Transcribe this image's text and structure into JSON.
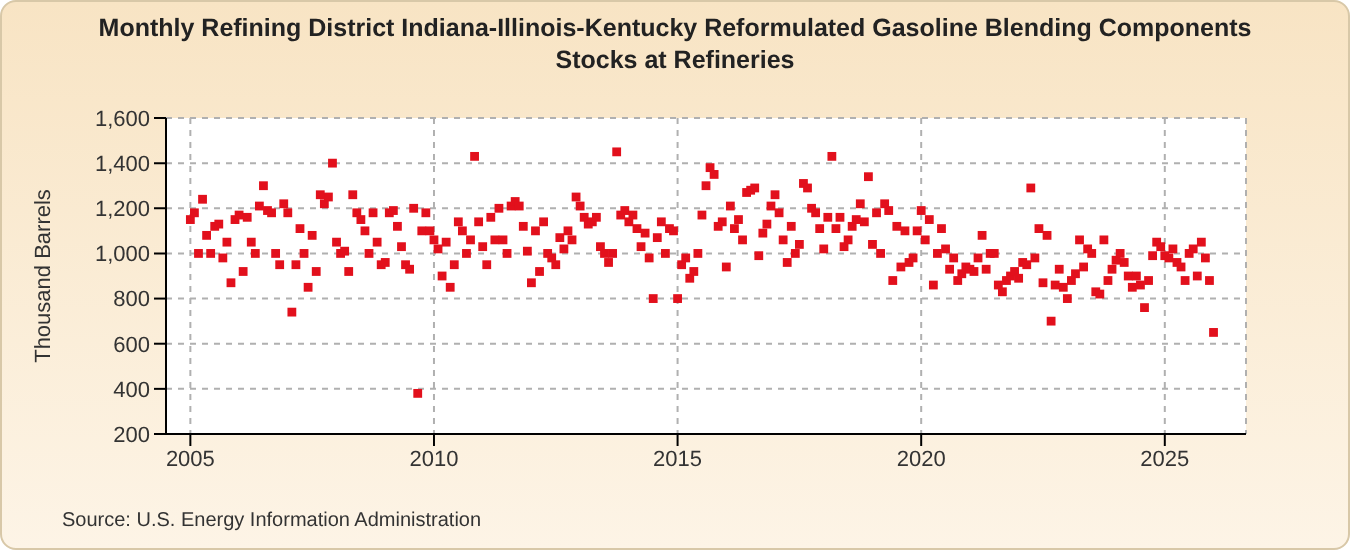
{
  "chart_data": {
    "type": "scatter",
    "title": "Monthly Refining District Indiana-Illinois-Kentucky Reformulated Gasoline Blending Components Stocks at Refineries",
    "ylabel": "Thousand Barrels",
    "annotations": [
      "Source: U.S. Energy Information Administration"
    ],
    "series": [
      {
        "color": "#e2101c",
        "marker": "square",
        "x": [
          "2005-01",
          "2005-02",
          "2005-03",
          "2005-04",
          "2005-05",
          "2005-06",
          "2005-07",
          "2005-08",
          "2005-09",
          "2005-10",
          "2005-11",
          "2005-12",
          "2006-01",
          "2006-02",
          "2006-03",
          "2006-04",
          "2006-05",
          "2006-06",
          "2006-07",
          "2006-08",
          "2006-09",
          "2006-10",
          "2006-11",
          "2006-12",
          "2007-01",
          "2007-02",
          "2007-03",
          "2007-04",
          "2007-05",
          "2007-06",
          "2007-07",
          "2007-08",
          "2007-09",
          "2007-10",
          "2007-11",
          "2007-12",
          "2008-01",
          "2008-02",
          "2008-03",
          "2008-04",
          "2008-05",
          "2008-06",
          "2008-07",
          "2008-08",
          "2008-09",
          "2008-10",
          "2008-11",
          "2008-12",
          "2009-01",
          "2009-02",
          "2009-03",
          "2009-04",
          "2009-05",
          "2009-06",
          "2009-07",
          "2009-08",
          "2009-09",
          "2009-10",
          "2009-11",
          "2009-12",
          "2010-01",
          "2010-02",
          "2010-03",
          "2010-04",
          "2010-05",
          "2010-06",
          "2010-07",
          "2010-08",
          "2010-09",
          "2010-10",
          "2010-11",
          "2010-12",
          "2011-01",
          "2011-02",
          "2011-03",
          "2011-04",
          "2011-05",
          "2011-06",
          "2011-07",
          "2011-08",
          "2011-09",
          "2011-10",
          "2011-11",
          "2011-12",
          "2012-01",
          "2012-02",
          "2012-03",
          "2012-04",
          "2012-05",
          "2012-06",
          "2012-07",
          "2012-08",
          "2012-09",
          "2012-10",
          "2012-11",
          "2012-12",
          "2013-01",
          "2013-02",
          "2013-03",
          "2013-04",
          "2013-05",
          "2013-06",
          "2013-07",
          "2013-08",
          "2013-09",
          "2013-10",
          "2013-11",
          "2013-12",
          "2014-01",
          "2014-02",
          "2014-03",
          "2014-04",
          "2014-05",
          "2014-06",
          "2014-07",
          "2014-08",
          "2014-09",
          "2014-10",
          "2014-11",
          "2014-12",
          "2015-01",
          "2015-02",
          "2015-03",
          "2015-04",
          "2015-05",
          "2015-06",
          "2015-07",
          "2015-08",
          "2015-09",
          "2015-10",
          "2015-11",
          "2015-12",
          "2016-01",
          "2016-02",
          "2016-03",
          "2016-04",
          "2016-05",
          "2016-06",
          "2016-07",
          "2016-08",
          "2016-09",
          "2016-10",
          "2016-11",
          "2016-12",
          "2017-01",
          "2017-02",
          "2017-03",
          "2017-04",
          "2017-05",
          "2017-06",
          "2017-07",
          "2017-08",
          "2017-09",
          "2017-10",
          "2017-11",
          "2017-12",
          "2018-01",
          "2018-02",
          "2018-03",
          "2018-04",
          "2018-05",
          "2018-06",
          "2018-07",
          "2018-08",
          "2018-09",
          "2018-10",
          "2018-11",
          "2018-12",
          "2019-01",
          "2019-02",
          "2019-03",
          "2019-04",
          "2019-05",
          "2019-06",
          "2019-07",
          "2019-08",
          "2019-09",
          "2019-10",
          "2019-11",
          "2019-12",
          "2020-01",
          "2020-02",
          "2020-03",
          "2020-04",
          "2020-05",
          "2020-06",
          "2020-07",
          "2020-08",
          "2020-09",
          "2020-10",
          "2020-11",
          "2020-12",
          "2021-01",
          "2021-02",
          "2021-03",
          "2021-04",
          "2021-05",
          "2021-06",
          "2021-07",
          "2021-08",
          "2021-09",
          "2021-10",
          "2021-11",
          "2021-12",
          "2022-01",
          "2022-02",
          "2022-03",
          "2022-04",
          "2022-05",
          "2022-06",
          "2022-07",
          "2022-08",
          "2022-09",
          "2022-10",
          "2022-11",
          "2022-12",
          "2023-01",
          "2023-02",
          "2023-03",
          "2023-04",
          "2023-05",
          "2023-06",
          "2023-07",
          "2023-08",
          "2023-09",
          "2023-10",
          "2023-11",
          "2023-12",
          "2024-01",
          "2024-02",
          "2024-03",
          "2024-04",
          "2024-05",
          "2024-06",
          "2024-07",
          "2024-08",
          "2024-09",
          "2024-10",
          "2024-11",
          "2024-12",
          "2025-01",
          "2025-02",
          "2025-03",
          "2025-04",
          "2025-05",
          "2025-06",
          "2025-07",
          "2025-08",
          "2025-09",
          "2025-10",
          "2025-11",
          "2025-12",
          "2026-01"
        ],
        "values": [
          1150,
          1180,
          1000,
          1240,
          1080,
          1000,
          1120,
          1130,
          980,
          1050,
          870,
          1150,
          1170,
          920,
          1160,
          1050,
          1000,
          1210,
          1300,
          1190,
          1180,
          1000,
          950,
          1220,
          1180,
          740,
          950,
          1110,
          1000,
          850,
          1080,
          920,
          1260,
          1220,
          1250,
          1400,
          1050,
          1000,
          1010,
          920,
          1260,
          1180,
          1150,
          1100,
          1000,
          1180,
          1050,
          950,
          960,
          1180,
          1190,
          1120,
          1030,
          950,
          930,
          1200,
          380,
          1100,
          1180,
          1100,
          1060,
          1020,
          900,
          1050,
          850,
          950,
          1140,
          1100,
          1000,
          1060,
          1430,
          1140,
          1030,
          950,
          1160,
          1060,
          1200,
          1060,
          1000,
          1210,
          1230,
          1210,
          1120,
          1010,
          870,
          1100,
          920,
          1140,
          1000,
          980,
          950,
          1070,
          1020,
          1100,
          1060,
          1250,
          1210,
          1160,
          1130,
          1140,
          1160,
          1030,
          1000,
          960,
          1000,
          1450,
          1170,
          1190,
          1140,
          1170,
          1110,
          1030,
          1090,
          980,
          800,
          1070,
          1140,
          1000,
          1110,
          1100,
          800,
          950,
          980,
          890,
          920,
          1000,
          1170,
          1300,
          1380,
          1350,
          1120,
          1140,
          940,
          1210,
          1110,
          1150,
          1060,
          1270,
          1280,
          1290,
          990,
          1090,
          1130,
          1210,
          1260,
          1180,
          1060,
          960,
          1120,
          1000,
          1040,
          1310,
          1290,
          1200,
          1180,
          1110,
          1020,
          1160,
          1430,
          1110,
          1160,
          1030,
          1060,
          1120,
          1150,
          1220,
          1140,
          1340,
          1040,
          1180,
          1000,
          1220,
          1190,
          880,
          1120,
          940,
          1100,
          960,
          980,
          1100,
          1190,
          1060,
          1150,
          860,
          1000,
          1110,
          1020,
          930,
          980,
          880,
          910,
          940,
          930,
          920,
          980,
          1080,
          930,
          1000,
          1000,
          860,
          830,
          880,
          900,
          920,
          890,
          960,
          950,
          1290,
          980,
          1110,
          870,
          1080,
          700,
          860,
          930,
          850,
          800,
          880,
          910,
          1060,
          940,
          1020,
          1000,
          830,
          820,
          1060,
          880,
          930,
          970,
          1000,
          960,
          900,
          850,
          900,
          860,
          760,
          880,
          990,
          1050,
          1030,
          990,
          980,
          1020,
          960,
          940,
          880,
          1000,
          1020,
          900,
          1050,
          980,
          880,
          650
        ]
      }
    ],
    "xlim": [
      "2004-07",
      "2026-09"
    ],
    "xticks": [
      {
        "value": "2005",
        "label": "2005"
      },
      {
        "value": "2010",
        "label": "2010"
      },
      {
        "value": "2015",
        "label": "2015"
      },
      {
        "value": "2020",
        "label": "2020"
      },
      {
        "value": "2025",
        "label": "2025"
      }
    ],
    "ylim": [
      200,
      1600
    ],
    "yticks": [
      {
        "value": 200,
        "label": "200"
      },
      {
        "value": 400,
        "label": "400"
      },
      {
        "value": 600,
        "label": "600"
      },
      {
        "value": 800,
        "label": "800"
      },
      {
        "value": 1000,
        "label": "1,000"
      },
      {
        "value": 1200,
        "label": "1,200"
      },
      {
        "value": 1400,
        "label": "1,400"
      },
      {
        "value": 1600,
        "label": "1,600"
      }
    ],
    "grid": true,
    "legend": false
  }
}
